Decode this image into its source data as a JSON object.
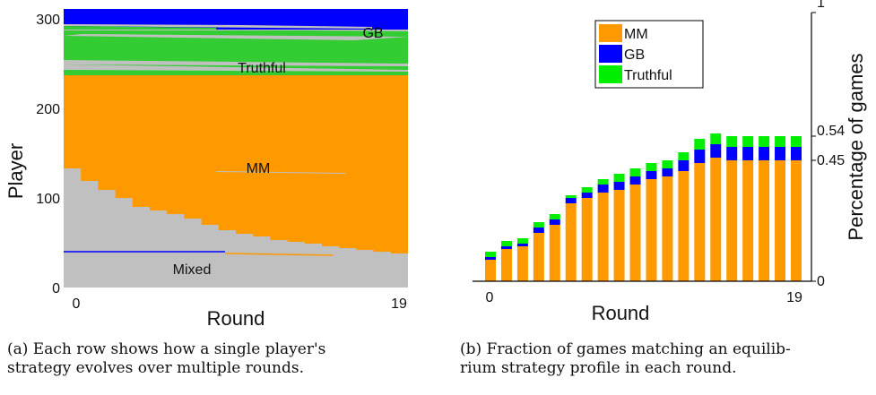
{
  "captions": {
    "a_line1": "(a) Each row shows how a single player's",
    "a_line2": "strategy evolves over multiple rounds.",
    "b_line1": "(b) Fraction of games matching an equilib-",
    "b_line2": "rium strategy profile in each round."
  },
  "colors": {
    "MM": "#ff9900",
    "GB": "#0000ff",
    "Truthful": "#00ee00",
    "Mixed": "#c0c0c0",
    "TruthfulDark": "#33cc33"
  },
  "chart_data": [
    {
      "id": "a",
      "type": "area",
      "xlabel": "Round",
      "ylabel": "Player",
      "x_ticks": [
        "0",
        "19"
      ],
      "y_ticks": [
        "0",
        "100",
        "200",
        "300"
      ],
      "xlim": [
        0,
        19
      ],
      "ylim": [
        0,
        300
      ],
      "region_labels": [
        "GB",
        "Truthful",
        "MM",
        "Mixed"
      ],
      "mm_lower_boundary": [
        133,
        119,
        109,
        100,
        90,
        86,
        82,
        77,
        70,
        64,
        60,
        57,
        53,
        51,
        49,
        46,
        44,
        42,
        40,
        38
      ],
      "boundaries": {
        "mixed_bottom_band_top": 38,
        "mm_top": 237,
        "truthful_top": 287,
        "gb_bottom": 288,
        "gb_top": 311
      }
    },
    {
      "id": "b",
      "type": "bar",
      "xlabel": "Round",
      "ylabel": "Percentage of games",
      "x_ticks": [
        "0",
        "19"
      ],
      "y_ticks": [
        "0",
        "0.45",
        "0.54",
        "1"
      ],
      "ylim": [
        0,
        1
      ],
      "legend": [
        "MM",
        "GB",
        "Truthful"
      ],
      "legend_position": "top-left",
      "x": [
        0,
        1,
        2,
        3,
        4,
        5,
        6,
        7,
        8,
        9,
        10,
        11,
        12,
        13,
        14,
        15,
        16,
        17,
        18,
        19
      ],
      "series": [
        {
          "name": "MM",
          "values": [
            0.08,
            0.12,
            0.13,
            0.18,
            0.21,
            0.29,
            0.31,
            0.33,
            0.34,
            0.36,
            0.38,
            0.39,
            0.41,
            0.44,
            0.46,
            0.45,
            0.45,
            0.45,
            0.45,
            0.45
          ]
        },
        {
          "name": "GB",
          "values": [
            0.01,
            0.01,
            0.01,
            0.02,
            0.02,
            0.02,
            0.02,
            0.03,
            0.03,
            0.03,
            0.03,
            0.03,
            0.04,
            0.05,
            0.05,
            0.05,
            0.05,
            0.05,
            0.05,
            0.05
          ]
        },
        {
          "name": "Truthful",
          "values": [
            0.02,
            0.02,
            0.02,
            0.02,
            0.02,
            0.01,
            0.02,
            0.02,
            0.03,
            0.03,
            0.03,
            0.03,
            0.03,
            0.04,
            0.04,
            0.04,
            0.04,
            0.04,
            0.04,
            0.04
          ]
        }
      ]
    }
  ]
}
